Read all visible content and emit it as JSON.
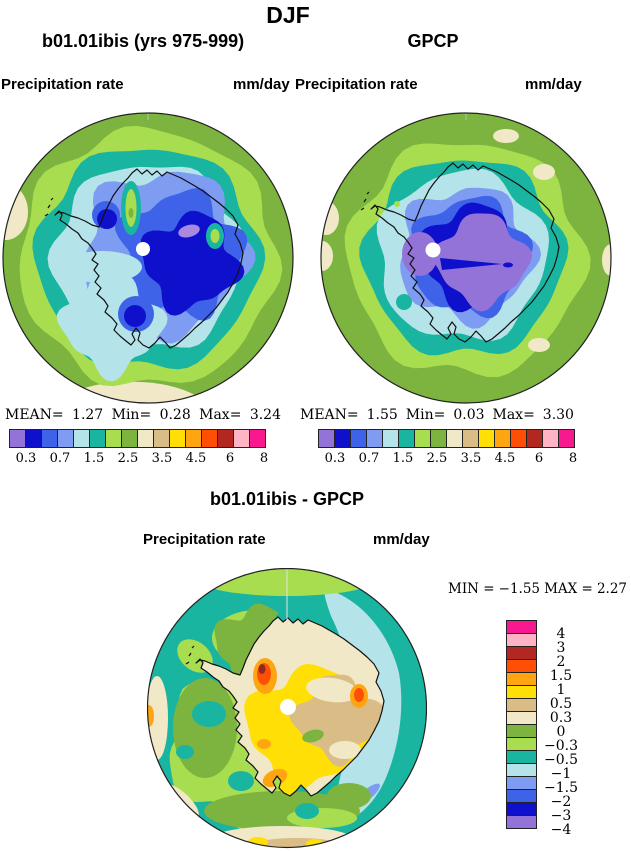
{
  "title": "DJF",
  "panels": [
    {
      "title": "b01.01ibis (yrs 975-999)",
      "field_label": "Precipitation rate",
      "units": "mm/day",
      "stats": {
        "mean_label": "MEAN=",
        "mean": "1.27",
        "min_label": "Min=",
        "min": "0.28",
        "max_label": "Max=",
        "max": "3.24"
      }
    },
    {
      "title": "GPCP",
      "field_label": "Precipitation rate",
      "units": "mm/day",
      "stats": {
        "mean_label": "MEAN=",
        "mean": "1.55",
        "min_label": "Min=",
        "min": "0.03",
        "max_label": "Max=",
        "max": "3.30"
      }
    }
  ],
  "diff": {
    "title": "b01.01ibis - GPCP",
    "field_label": "Precipitation rate",
    "units": "mm/day",
    "min_label": "MIN =",
    "min": "−1.55",
    "max_label": "MAX =",
    "max": "2.27"
  },
  "colorbar": {
    "tick_labels": [
      "0.3",
      "0.7",
      "1.5",
      "2.5",
      "3.5",
      "4.5",
      "6",
      "8"
    ],
    "colors_low_to_high": [
      "#9473d9",
      "#0f10cc",
      "#3f63e8",
      "#7e9cf2",
      "#b5e3ea",
      "#1ab5a1",
      "#a9dd50",
      "#7cb43f",
      "#f1e8c8",
      "#dabd86",
      "#ffdf05",
      "#ffa512",
      "#ff4f05",
      "#b2271f",
      "#ffb4c6",
      "#f8188f"
    ]
  },
  "diff_colorbar": {
    "colors_top_to_bottom": [
      "#f8188f",
      "#ffb4c6",
      "#b2271f",
      "#ff4f05",
      "#ffa512",
      "#ffdf05",
      "#dabd86",
      "#f1e8c8",
      "#7cb43f",
      "#a9dd50",
      "#1ab5a1",
      "#b5e3ea",
      "#7e9cf2",
      "#3f63e8",
      "#0f10cc",
      "#9473d9"
    ],
    "tick_labels_top_to_bottom": [
      "4",
      "3",
      "2",
      "1.5",
      "1",
      "0.5",
      "0.3",
      "0",
      "−0.3",
      "−0.5",
      "−1",
      "−1.5",
      "−2",
      "−3",
      "−4"
    ]
  },
  "chart_data": [
    {
      "type": "heatmap",
      "subtype": "south-polar-stereographic filled contour map",
      "title": "b01.01ibis (yrs 975-999)",
      "field": "Precipitation rate",
      "units": "mm/day",
      "season": "DJF",
      "mean": 1.27,
      "min": 0.28,
      "max": 3.24,
      "labeled_levels": [
        0.3,
        0.7,
        1.5,
        2.5,
        3.5,
        4.5,
        6,
        8
      ],
      "n_color_bins": 16,
      "legend_position": "below"
    },
    {
      "type": "heatmap",
      "subtype": "south-polar-stereographic filled contour map",
      "title": "GPCP",
      "field": "Precipitation rate",
      "units": "mm/day",
      "season": "DJF",
      "mean": 1.55,
      "min": 0.03,
      "max": 3.3,
      "labeled_levels": [
        0.3,
        0.7,
        1.5,
        2.5,
        3.5,
        4.5,
        6,
        8
      ],
      "n_color_bins": 16,
      "legend_position": "below"
    },
    {
      "type": "heatmap",
      "subtype": "south-polar-stereographic filled contour difference map",
      "title": "b01.01ibis - GPCP",
      "field": "Precipitation rate",
      "units": "mm/day",
      "season": "DJF",
      "min": -1.55,
      "max": 2.27,
      "labeled_levels": [
        -4,
        -3,
        -2,
        -1.5,
        -1,
        -0.5,
        -0.3,
        0,
        0.3,
        0.5,
        1,
        1.5,
        2,
        3,
        4
      ],
      "n_color_bins": 16,
      "legend_position": "right-vertical"
    }
  ]
}
